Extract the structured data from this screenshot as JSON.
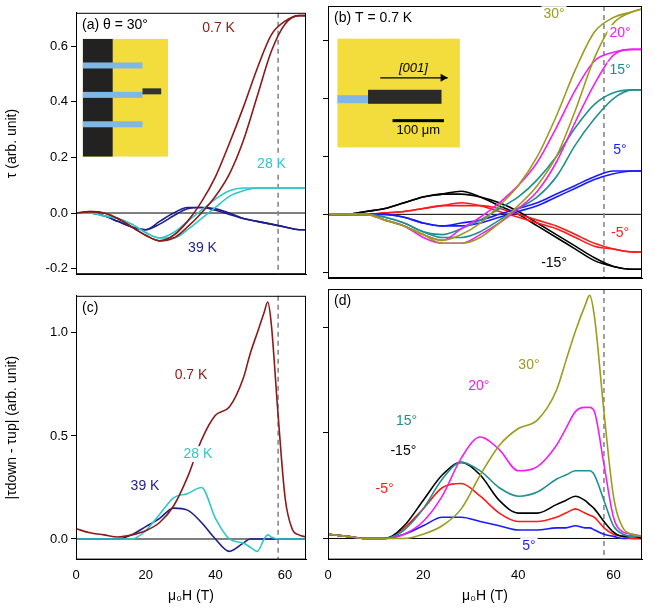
{
  "chart_data": [
    {
      "type": "line",
      "title": "(a) θ = 30°",
      "y_label": "τ (arb. unit)",
      "xlim": [
        0,
        66
      ],
      "xticks": [
        0,
        20,
        40,
        60
      ],
      "ylim": [
        -0.22,
        0.72
      ],
      "yticks": [
        -0.2,
        {
          "value": 0,
          "label": "0.0"
        },
        0.2,
        0.4,
        0.6
      ],
      "tick_labels": "y",
      "grid": false,
      "vline": 58,
      "hline": 0,
      "x": [
        0,
        4,
        8,
        12,
        16,
        20,
        24,
        28,
        32,
        36,
        40,
        44,
        48,
        52,
        56,
        60,
        64,
        66
      ],
      "series": [
        {
          "name": "0.7 K",
          "color": "#8b1a1a",
          "values": [
            0,
            0.005,
            0,
            -0.02,
            -0.05,
            -0.08,
            -0.1,
            -0.09,
            -0.05,
            0,
            0.06,
            0.14,
            0.26,
            0.42,
            0.58,
            0.68,
            0.71,
            0.71
          ],
          "values_down": [
            0,
            0.005,
            0,
            -0.02,
            -0.05,
            -0.08,
            -0.1,
            -0.08,
            -0.03,
            0.04,
            0.13,
            0.25,
            0.38,
            0.52,
            0.64,
            0.69,
            0.71,
            0.71
          ]
        },
        {
          "name": "28 K",
          "color": "#2ec8c8",
          "values": [
            0,
            0,
            -0.01,
            -0.02,
            -0.04,
            -0.07,
            -0.09,
            -0.09,
            -0.06,
            -0.02,
            0.02,
            0.06,
            0.08,
            0.09,
            0.09,
            0.09,
            0.09,
            0.09
          ],
          "values_down": [
            0,
            0,
            -0.01,
            -0.02,
            -0.04,
            -0.07,
            -0.09,
            -0.07,
            -0.03,
            0.01,
            0.05,
            0.08,
            0.09,
            0.09,
            0.09,
            0.09,
            0.09,
            0.09
          ]
        },
        {
          "name": "39 K",
          "color": "#1e1e8c",
          "values": [
            0,
            0,
            -0.01,
            -0.03,
            -0.05,
            -0.06,
            -0.04,
            -0.01,
            0.015,
            0.02,
            0.015,
            0,
            -0.02,
            -0.03,
            -0.04,
            -0.05,
            -0.06,
            -0.06
          ],
          "values_down": [
            0,
            0,
            -0.01,
            -0.03,
            -0.05,
            -0.06,
            -0.03,
            0,
            0.02,
            0.02,
            0.01,
            -0.005,
            -0.02,
            -0.03,
            -0.04,
            -0.05,
            -0.06,
            -0.06
          ]
        }
      ]
    },
    {
      "type": "line",
      "title": "(b) T = 0.7 K",
      "xlim": [
        0,
        66
      ],
      "xticks": [
        0,
        20,
        40,
        60
      ],
      "ylim": [
        -0.22,
        0.72
      ],
      "yticks": [
        -0.2,
        {
          "value": 0,
          "label": "0.0"
        },
        0.2,
        0.4,
        0.6
      ],
      "tick_labels": false,
      "grid": false,
      "vline": 58,
      "hline": 0,
      "inset": {
        "direction": "[001]",
        "scale_bar": "100 μm"
      },
      "x": [
        0,
        4,
        8,
        12,
        16,
        20,
        24,
        28,
        32,
        36,
        40,
        44,
        48,
        52,
        56,
        60,
        64,
        66
      ],
      "series": [
        {
          "name": "30°",
          "color": "#9c9c1c",
          "values": [
            0,
            0,
            0,
            -0.02,
            -0.04,
            -0.07,
            -0.1,
            -0.1,
            -0.08,
            -0.03,
            0.03,
            0.1,
            0.2,
            0.36,
            0.54,
            0.66,
            0.7,
            0.71
          ],
          "values_down": [
            0,
            0,
            0,
            -0.02,
            -0.04,
            -0.07,
            -0.09,
            -0.07,
            -0.03,
            0.03,
            0.1,
            0.2,
            0.34,
            0.5,
            0.63,
            0.68,
            0.7,
            0.71
          ]
        },
        {
          "name": "20°",
          "color": "#f020f0",
          "values": [
            0,
            0,
            0,
            -0.02,
            -0.04,
            -0.08,
            -0.1,
            -0.1,
            -0.07,
            -0.03,
            0.02,
            0.08,
            0.18,
            0.32,
            0.45,
            0.55,
            0.57,
            0.57
          ],
          "values_down": [
            0,
            0,
            0,
            -0.02,
            -0.04,
            -0.07,
            -0.09,
            -0.05,
            -0.01,
            0.04,
            0.1,
            0.18,
            0.3,
            0.43,
            0.53,
            0.56,
            0.57,
            0.57
          ]
        },
        {
          "name": "15°",
          "color": "#1f8f8f",
          "values": [
            0,
            0,
            0,
            -0.01,
            -0.03,
            -0.06,
            -0.08,
            -0.08,
            -0.06,
            -0.02,
            0.02,
            0.06,
            0.13,
            0.24,
            0.33,
            0.4,
            0.43,
            0.43
          ],
          "values_down": [
            0,
            0,
            0,
            -0.01,
            -0.03,
            -0.06,
            -0.07,
            -0.05,
            -0.02,
            0.02,
            0.06,
            0.12,
            0.2,
            0.3,
            0.38,
            0.42,
            0.43,
            0.43
          ]
        },
        {
          "name": "5°",
          "color": "#1a1aff",
          "values": [
            0,
            0,
            0,
            0,
            -0.01,
            -0.03,
            -0.04,
            -0.04,
            -0.03,
            -0.01,
            0.01,
            0.03,
            0.06,
            0.09,
            0.12,
            0.14,
            0.15,
            0.15
          ],
          "values_down": [
            0,
            0,
            0,
            0,
            -0.01,
            -0.03,
            -0.04,
            -0.03,
            -0.02,
            0,
            0.02,
            0.04,
            0.07,
            0.1,
            0.13,
            0.15,
            0.15,
            0.15
          ]
        },
        {
          "name": "-5°",
          "color": "#ff1a1a",
          "values": [
            0,
            0,
            0,
            0.005,
            0.01,
            0.02,
            0.03,
            0.03,
            0.03,
            0.02,
            0,
            -0.02,
            -0.04,
            -0.07,
            -0.1,
            -0.12,
            -0.13,
            -0.13
          ],
          "values_down": [
            0,
            0,
            0,
            0.005,
            0.01,
            0.02,
            0.03,
            0.04,
            0.03,
            0.01,
            -0.01,
            -0.03,
            -0.05,
            -0.08,
            -0.11,
            -0.12,
            -0.13,
            -0.13
          ]
        },
        {
          "name": "-15°",
          "color": "#000000",
          "values": [
            0,
            0,
            0.01,
            0.02,
            0.04,
            0.06,
            0.07,
            0.07,
            0.06,
            0.04,
            0.01,
            -0.03,
            -0.07,
            -0.11,
            -0.15,
            -0.18,
            -0.19,
            -0.19
          ],
          "values_down": [
            0,
            0,
            0.01,
            0.02,
            0.04,
            0.06,
            0.07,
            0.08,
            0.06,
            0.03,
            0,
            -0.04,
            -0.08,
            -0.12,
            -0.16,
            -0.18,
            -0.19,
            -0.19
          ]
        }
      ]
    },
    {
      "type": "line",
      "title": "(c)",
      "x_label": "μ₀H (T)",
      "y_label": "|τdown - τup| (arb. unit)",
      "xlim": [
        0,
        66
      ],
      "xticks": [
        0,
        20,
        40,
        60
      ],
      "ylim": [
        -0.1,
        1.18
      ],
      "yticks": [
        {
          "value": 0,
          "label": "0.0"
        },
        0.5,
        {
          "value": 1,
          "label": "1.0"
        }
      ],
      "grid": false,
      "vline": 58,
      "hline": 0,
      "x": [
        0,
        4,
        8,
        12,
        16,
        20,
        24,
        28,
        32,
        36,
        40,
        44,
        48,
        50,
        52,
        54,
        55,
        56,
        58,
        60,
        62,
        64,
        66
      ],
      "series": [
        {
          "name": "0.7 K",
          "color": "#8b1a1a",
          "values": [
            0.05,
            0.03,
            0.02,
            0.01,
            0.02,
            0.04,
            0.08,
            0.16,
            0.3,
            0.48,
            0.6,
            0.64,
            0.78,
            0.9,
            1.0,
            1.1,
            1.15,
            1.05,
            0.6,
            0.2,
            0.05,
            0.02,
            0.01
          ]
        },
        {
          "name": "28 K",
          "color": "#2ec8c8",
          "values": [
            0,
            0,
            0,
            0,
            0,
            0.04,
            0.12,
            0.2,
            0.22,
            0.25,
            0.1,
            0,
            -0.02,
            -0.04,
            -0.06,
            0,
            0.02,
            0.01,
            0,
            0,
            0,
            0,
            0
          ]
        },
        {
          "name": "39 K",
          "color": "#1e1e8c",
          "values": [
            0,
            0,
            0,
            0,
            0.02,
            0.06,
            0.1,
            0.15,
            0.14,
            0.08,
            0,
            -0.06,
            -0.02,
            0,
            0,
            0,
            0,
            0,
            0,
            0,
            0,
            0,
            0
          ]
        }
      ]
    },
    {
      "type": "line",
      "title": "(d)",
      "x_label": "μ₀H (T)",
      "xlim": [
        0,
        66
      ],
      "xticks": [
        0,
        20,
        40,
        60
      ],
      "ylim": [
        -0.1,
        1.18
      ],
      "yticks": [
        {
          "value": 0,
          "label": "0.0"
        },
        0.5,
        {
          "value": 1,
          "label": "1.0"
        }
      ],
      "tick_labels": "x",
      "grid": false,
      "vline": 58,
      "hline": 0,
      "x": [
        0,
        4,
        8,
        12,
        16,
        20,
        24,
        28,
        32,
        36,
        40,
        44,
        48,
        50,
        52,
        54,
        55,
        56,
        58,
        60,
        62,
        64,
        66
      ],
      "series": [
        {
          "name": "30°",
          "color": "#9c9c1c",
          "values": [
            0.02,
            0.01,
            0,
            0,
            0,
            0.02,
            0.06,
            0.14,
            0.3,
            0.44,
            0.52,
            0.56,
            0.7,
            0.84,
            0.98,
            1.1,
            1.15,
            1.05,
            0.6,
            0.2,
            0.05,
            0.02,
            0.01
          ]
        },
        {
          "name": "20°",
          "color": "#f020f0",
          "values": [
            0.02,
            0.01,
            0,
            0,
            0.02,
            0.08,
            0.2,
            0.38,
            0.48,
            0.42,
            0.32,
            0.34,
            0.44,
            0.52,
            0.6,
            0.62,
            0.62,
            0.6,
            0.35,
            0.1,
            0.03,
            0.02,
            0.01
          ]
        },
        {
          "name": "15°",
          "color": "#1f8f8f",
          "values": [
            0.02,
            0.01,
            0,
            0,
            0.04,
            0.14,
            0.28,
            0.36,
            0.32,
            0.24,
            0.2,
            0.22,
            0.28,
            0.3,
            0.32,
            0.32,
            0.32,
            0.3,
            0.18,
            0.06,
            0.02,
            0.01,
            0.01
          ]
        },
        {
          "name": "-15°",
          "color": "#000000",
          "values": [
            0.02,
            0.01,
            0,
            0,
            0.06,
            0.18,
            0.3,
            0.36,
            0.3,
            0.18,
            0.12,
            0.12,
            0.16,
            0.18,
            0.2,
            0.18,
            0.16,
            0.14,
            0.08,
            0.03,
            0.01,
            0.01,
            0
          ]
        },
        {
          "name": "-5°",
          "color": "#ff1a1a",
          "values": [
            0.02,
            0.01,
            0,
            0,
            0.05,
            0.14,
            0.24,
            0.26,
            0.2,
            0.12,
            0.08,
            0.08,
            0.1,
            0.12,
            0.14,
            0.12,
            0.11,
            0.1,
            0.05,
            0.02,
            0.01,
            0,
            0
          ]
        },
        {
          "name": "5°",
          "color": "#1a1aff",
          "values": [
            0.02,
            0.01,
            0,
            0,
            0.02,
            0.06,
            0.1,
            0.1,
            0.08,
            0.06,
            0.04,
            0.04,
            0.05,
            0.05,
            0.06,
            0.05,
            0.05,
            0.04,
            0.02,
            0.01,
            0,
            0,
            0
          ]
        }
      ]
    }
  ]
}
